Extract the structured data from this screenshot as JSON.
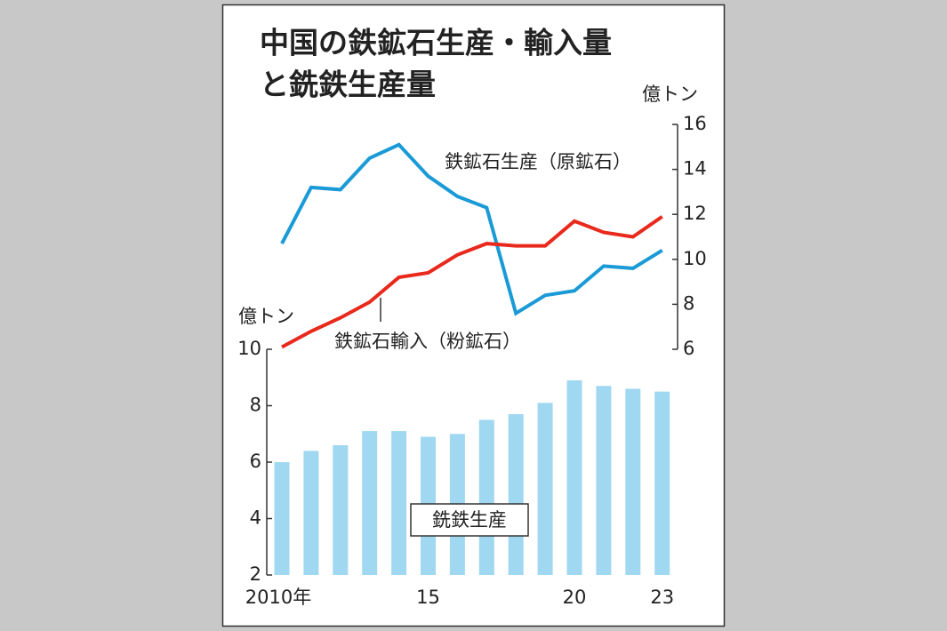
{
  "chart_data": [
    {
      "type": "line",
      "title": [
        "中国の鉄鉱石生産・輸入量",
        "と銑鉄生産量"
      ],
      "ylabel": "億トン",
      "ylim": [
        6,
        16
      ],
      "yticks": [
        6,
        8,
        10,
        12,
        14,
        16
      ],
      "y_axis_side": "right",
      "series": [
        {
          "name": "鉄鉱石生産（原鉱石）",
          "color": "#1a9ad6",
          "values": [
            10.7,
            13.2,
            13.1,
            14.5,
            15.1,
            13.7,
            12.8,
            12.3,
            7.6,
            8.4,
            8.6,
            9.7,
            9.6,
            10.4
          ]
        },
        {
          "name": "鉄鉱石輸入（粉鉱石）",
          "color": "#e8291c",
          "values": [
            6.1,
            6.8,
            7.4,
            8.1,
            9.2,
            9.4,
            10.2,
            10.7,
            10.6,
            10.6,
            11.7,
            11.2,
            11.0,
            11.9
          ]
        }
      ]
    },
    {
      "type": "bar",
      "ylabel": "億トン",
      "label": "銑鉄生産",
      "categories": [
        "2010年",
        null,
        null,
        null,
        null,
        "15",
        null,
        null,
        null,
        null,
        "20",
        null,
        null,
        "23"
      ],
      "values": [
        6.0,
        6.4,
        6.6,
        7.1,
        7.1,
        6.9,
        7.0,
        7.5,
        7.7,
        8.1,
        8.9,
        8.7,
        8.6,
        8.5
      ],
      "color": "#9fd8f0",
      "ylim": [
        2,
        10
      ],
      "yticks": [
        2,
        4,
        6,
        8,
        10
      ],
      "y_axis_side": "left"
    }
  ]
}
